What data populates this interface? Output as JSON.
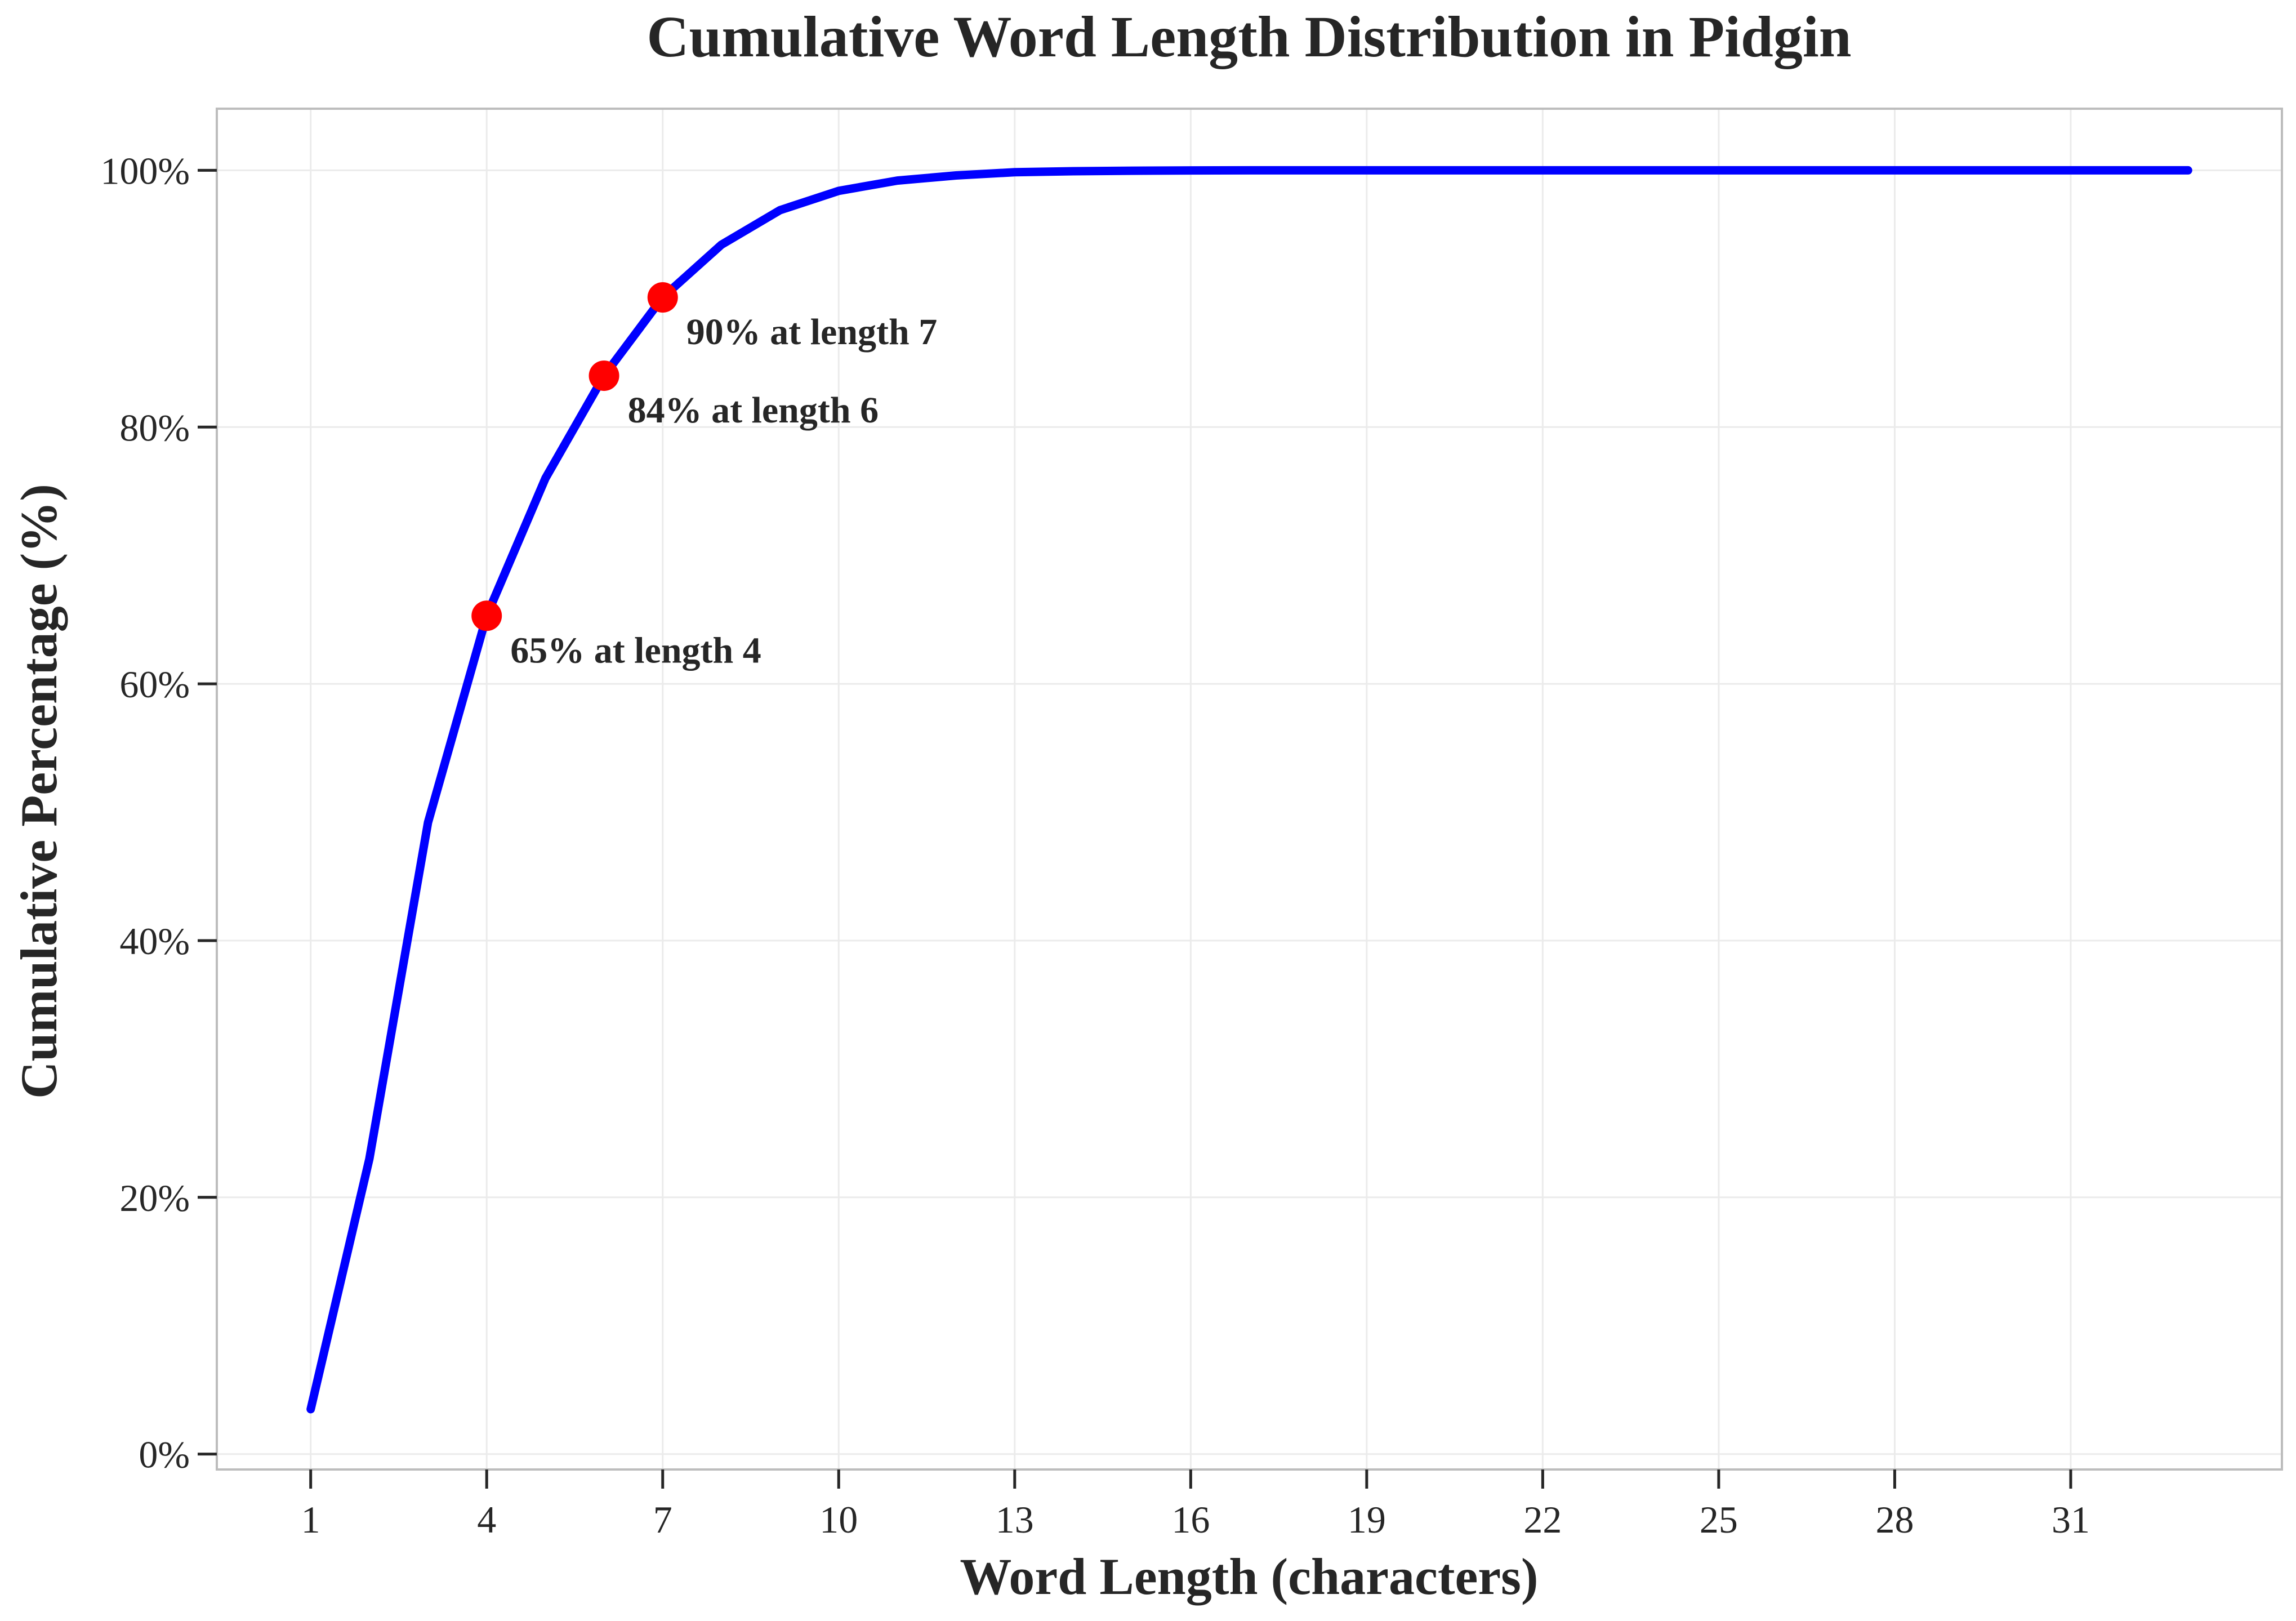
{
  "chart_data": {
    "type": "line",
    "title": "Cumulative Word Length Distribution in Pidgin",
    "xlabel": "Word Length (characters)",
    "ylabel": "Cumulative Percentage (%)",
    "xlim": [
      -0.6,
      34.6
    ],
    "ylim": [
      -1.2,
      104.8
    ],
    "xticks": [
      1,
      4,
      7,
      10,
      13,
      16,
      19,
      22,
      25,
      28,
      31
    ],
    "yticks": [
      0,
      20,
      40,
      60,
      80,
      100
    ],
    "ytick_labels": [
      "0%",
      "20%",
      "40%",
      "60%",
      "80%",
      "100%"
    ],
    "grid": true,
    "line_color": "#0000ff",
    "marker_color": "#ff0000",
    "series": [
      {
        "x": [
          1,
          2,
          3,
          4,
          5,
          6,
          7,
          8,
          9,
          10,
          11,
          12,
          13,
          14,
          15,
          16,
          17,
          18,
          19,
          20,
          21,
          22,
          23,
          24,
          25,
          26,
          27,
          28,
          29,
          30,
          31,
          32,
          33
        ],
        "values": [
          3.5,
          23.0,
          49.2,
          65.3,
          76.0,
          84.0,
          90.1,
          94.2,
          96.9,
          98.4,
          99.2,
          99.6,
          99.85,
          99.93,
          99.97,
          99.99,
          100,
          100,
          100,
          100,
          100,
          100,
          100,
          100,
          100,
          100,
          100,
          100,
          100,
          100,
          100,
          100,
          100
        ]
      }
    ],
    "highlights": [
      {
        "x": 4,
        "y": 65.3,
        "label": "65% at length 4"
      },
      {
        "x": 6,
        "y": 84.0,
        "label": "84% at length 6"
      },
      {
        "x": 7,
        "y": 90.1,
        "label": "90% at length 7"
      }
    ]
  }
}
